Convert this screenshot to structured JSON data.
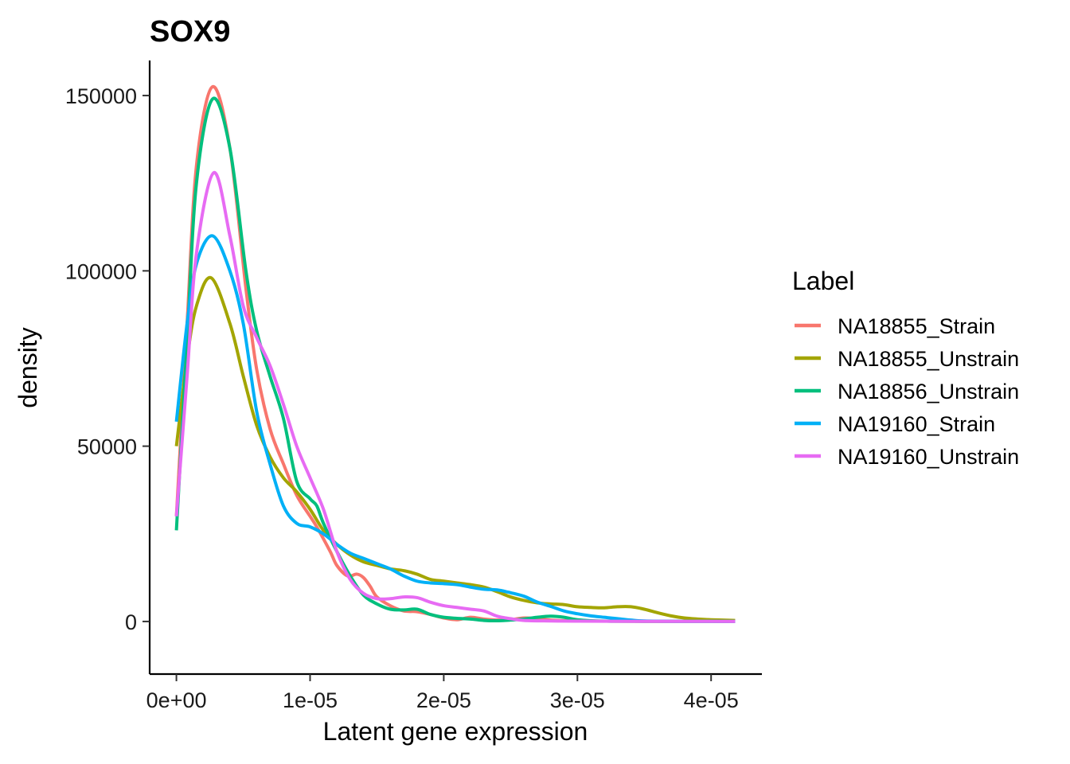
{
  "chart_data": {
    "type": "line",
    "title": "SOX9",
    "xlabel": "Latent gene expression",
    "ylabel": "density",
    "xlim": [
      -2e-06,
      4.38e-05
    ],
    "ylim": [
      -15000,
      160000
    ],
    "x_ticks": [
      0,
      1e-05,
      2e-05,
      3e-05,
      4e-05
    ],
    "x_tick_labels": [
      "0e+00",
      "1e-05",
      "2e-05",
      "3e-05",
      "4e-05"
    ],
    "y_ticks": [
      0,
      50000,
      100000,
      150000
    ],
    "y_tick_labels": [
      "0",
      "50000",
      "100000",
      "150000"
    ],
    "grid": false,
    "legend": {
      "title": "Label",
      "position": "right"
    },
    "series": [
      {
        "name": "NA18855_Strain",
        "color": "#F8766D",
        "points": [
          [
            0,
            30000
          ],
          [
            8e-07,
            85000
          ],
          [
            1.5e-06,
            130000
          ],
          [
            2.7e-06,
            152500
          ],
          [
            4e-06,
            135000
          ],
          [
            5.2e-06,
            95000
          ],
          [
            6e-06,
            72000
          ],
          [
            7e-06,
            55000
          ],
          [
            8e-06,
            45000
          ],
          [
            9e-06,
            36000
          ],
          [
            1e-05,
            30000
          ],
          [
            1.05e-05,
            27000
          ],
          [
            1.15e-05,
            20000
          ],
          [
            1.2e-05,
            16000
          ],
          [
            1.28e-05,
            13000
          ],
          [
            1.35e-05,
            13500
          ],
          [
            1.4e-05,
            12500
          ],
          [
            1.45e-05,
            10000
          ],
          [
            1.5e-05,
            7000
          ],
          [
            1.6e-05,
            4500
          ],
          [
            1.7e-05,
            3000
          ],
          [
            1.8e-05,
            2800
          ],
          [
            1.9e-05,
            2000
          ],
          [
            2e-05,
            1000
          ],
          [
            2.1e-05,
            500
          ],
          [
            2.2e-05,
            1200
          ],
          [
            2.3e-05,
            700
          ],
          [
            2.4e-05,
            400
          ],
          [
            2.5e-05,
            500
          ],
          [
            2.6e-05,
            1000
          ],
          [
            2.7e-05,
            800
          ],
          [
            2.8e-05,
            400
          ],
          [
            3e-05,
            150
          ],
          [
            3.5e-05,
            50
          ],
          [
            4.18e-05,
            20
          ]
        ]
      },
      {
        "name": "NA18855_Unstrain",
        "color": "#A3A500",
        "points": [
          [
            0,
            50000
          ],
          [
            8e-07,
            75000
          ],
          [
            1.5e-06,
            90000
          ],
          [
            2.6e-06,
            98000
          ],
          [
            4e-06,
            85000
          ],
          [
            5e-06,
            70000
          ],
          [
            6e-06,
            56000
          ],
          [
            7e-06,
            47000
          ],
          [
            8e-06,
            41000
          ],
          [
            9e-06,
            37000
          ],
          [
            1e-05,
            32000
          ],
          [
            1.1e-05,
            26000
          ],
          [
            1.2e-05,
            22000
          ],
          [
            1.3e-05,
            19000
          ],
          [
            1.4e-05,
            17000
          ],
          [
            1.5e-05,
            16000
          ],
          [
            1.6e-05,
            15000
          ],
          [
            1.7e-05,
            14500
          ],
          [
            1.8e-05,
            13500
          ],
          [
            1.9e-05,
            12000
          ],
          [
            2e-05,
            11500
          ],
          [
            2.1e-05,
            11000
          ],
          [
            2.2e-05,
            10500
          ],
          [
            2.3e-05,
            9800
          ],
          [
            2.4e-05,
            8500
          ],
          [
            2.5e-05,
            7000
          ],
          [
            2.6e-05,
            6000
          ],
          [
            2.7e-05,
            5300
          ],
          [
            2.8e-05,
            5000
          ],
          [
            2.9e-05,
            4800
          ],
          [
            3e-05,
            4200
          ],
          [
            3.1e-05,
            4000
          ],
          [
            3.2e-05,
            3900
          ],
          [
            3.3e-05,
            4200
          ],
          [
            3.4e-05,
            4200
          ],
          [
            3.5e-05,
            3500
          ],
          [
            3.6e-05,
            2500
          ],
          [
            3.7e-05,
            1600
          ],
          [
            3.8e-05,
            1000
          ],
          [
            3.9e-05,
            700
          ],
          [
            4e-05,
            500
          ],
          [
            4.18e-05,
            300
          ]
        ]
      },
      {
        "name": "NA18856_Unstrain",
        "color": "#00BF7D",
        "points": [
          [
            0,
            26000
          ],
          [
            8e-07,
            80000
          ],
          [
            1.5e-06,
            125000
          ],
          [
            2.7e-06,
            149000
          ],
          [
            4e-06,
            135000
          ],
          [
            5.2e-06,
            100000
          ],
          [
            6e-06,
            83000
          ],
          [
            7e-06,
            70000
          ],
          [
            8e-06,
            58000
          ],
          [
            9e-06,
            40000
          ],
          [
            1e-05,
            35000
          ],
          [
            1.05e-05,
            33000
          ],
          [
            1.1e-05,
            28000
          ],
          [
            1.2e-05,
            20000
          ],
          [
            1.3e-05,
            13000
          ],
          [
            1.4e-05,
            7500
          ],
          [
            1.5e-05,
            5000
          ],
          [
            1.6e-05,
            3500
          ],
          [
            1.7e-05,
            3300
          ],
          [
            1.8e-05,
            3500
          ],
          [
            1.9e-05,
            2000
          ],
          [
            2e-05,
            1200
          ],
          [
            2.1e-05,
            900
          ],
          [
            2.2e-05,
            700
          ],
          [
            2.3e-05,
            300
          ],
          [
            2.4e-05,
            200
          ],
          [
            2.5e-05,
            400
          ],
          [
            2.6e-05,
            700
          ],
          [
            2.7e-05,
            1200
          ],
          [
            2.8e-05,
            1500
          ],
          [
            2.9e-05,
            1200
          ],
          [
            3e-05,
            500
          ],
          [
            3.2e-05,
            100
          ],
          [
            3.5e-05,
            50
          ],
          [
            4.18e-05,
            20
          ]
        ]
      },
      {
        "name": "NA19160_Strain",
        "color": "#00B0F6",
        "points": [
          [
            0,
            57000
          ],
          [
            8e-07,
            85000
          ],
          [
            1.5e-06,
            102000
          ],
          [
            2.7e-06,
            110000
          ],
          [
            4e-06,
            100000
          ],
          [
            5e-06,
            85000
          ],
          [
            6e-06,
            60000
          ],
          [
            7e-06,
            45000
          ],
          [
            8e-06,
            33000
          ],
          [
            9e-06,
            28000
          ],
          [
            1e-05,
            27000
          ],
          [
            1.1e-05,
            25000
          ],
          [
            1.2e-05,
            22000
          ],
          [
            1.3e-05,
            19500
          ],
          [
            1.4e-05,
            18000
          ],
          [
            1.5e-05,
            16500
          ],
          [
            1.6e-05,
            15000
          ],
          [
            1.7e-05,
            13000
          ],
          [
            1.8e-05,
            11500
          ],
          [
            1.9e-05,
            11000
          ],
          [
            2e-05,
            10800
          ],
          [
            2.1e-05,
            10500
          ],
          [
            2.2e-05,
            9800
          ],
          [
            2.3e-05,
            9200
          ],
          [
            2.4e-05,
            9000
          ],
          [
            2.5e-05,
            8200
          ],
          [
            2.6e-05,
            7200
          ],
          [
            2.7e-05,
            5500
          ],
          [
            2.8e-05,
            4300
          ],
          [
            2.9e-05,
            3000
          ],
          [
            3e-05,
            2200
          ],
          [
            3.1e-05,
            1600
          ],
          [
            3.2e-05,
            1200
          ],
          [
            3.3e-05,
            800
          ],
          [
            3.4e-05,
            400
          ],
          [
            3.5e-05,
            150
          ],
          [
            3.8e-05,
            40
          ],
          [
            4.18e-05,
            20
          ]
        ]
      },
      {
        "name": "NA19160_Unstrain",
        "color": "#E76BF3",
        "points": [
          [
            0,
            30000
          ],
          [
            8e-07,
            70000
          ],
          [
            1.5e-06,
            105000
          ],
          [
            2.8e-06,
            128000
          ],
          [
            4e-06,
            110000
          ],
          [
            5e-06,
            90000
          ],
          [
            6e-06,
            81000
          ],
          [
            7e-06,
            73000
          ],
          [
            8e-06,
            62000
          ],
          [
            9e-06,
            50000
          ],
          [
            1e-05,
            41000
          ],
          [
            1.1e-05,
            32000
          ],
          [
            1.2e-05,
            20000
          ],
          [
            1.3e-05,
            12000
          ],
          [
            1.4e-05,
            8000
          ],
          [
            1.5e-05,
            6500
          ],
          [
            1.6e-05,
            6500
          ],
          [
            1.7e-05,
            7000
          ],
          [
            1.8e-05,
            6800
          ],
          [
            1.9e-05,
            5500
          ],
          [
            2e-05,
            4500
          ],
          [
            2.1e-05,
            4000
          ],
          [
            2.2e-05,
            3500
          ],
          [
            2.3e-05,
            3000
          ],
          [
            2.4e-05,
            1500
          ],
          [
            2.5e-05,
            800
          ],
          [
            2.6e-05,
            300
          ],
          [
            2.8e-05,
            150
          ],
          [
            3e-05,
            80
          ],
          [
            3.5e-05,
            40
          ],
          [
            4.18e-05,
            20
          ]
        ]
      }
    ]
  }
}
